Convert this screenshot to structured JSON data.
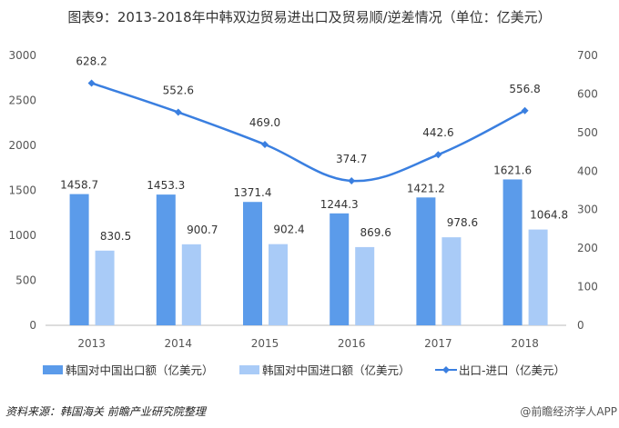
{
  "chart_data": {
    "type": "bar+line",
    "title": "图表9：2013-2018年中韩双边贸易进出口及贸易顺/逆差情况（单位：亿美元）",
    "categories": [
      "2013",
      "2014",
      "2015",
      "2016",
      "2017",
      "2018"
    ],
    "series": [
      {
        "name": "韩国对中国出口额（亿美元）",
        "type": "bar",
        "axis": "left",
        "color": "#5b9bea",
        "values": [
          1458.7,
          1453.3,
          1371.4,
          1244.3,
          1421.2,
          1621.6
        ]
      },
      {
        "name": "韩国对中国进口额（亿美元）",
        "type": "bar",
        "axis": "left",
        "color": "#a9cbf7",
        "values": [
          830.5,
          900.7,
          902.4,
          869.6,
          978.6,
          1064.8
        ]
      },
      {
        "name": "出口-进口（亿美元）",
        "type": "line",
        "axis": "right",
        "color": "#3a7fe0",
        "values": [
          628.2,
          552.6,
          469.0,
          374.7,
          442.6,
          556.8
        ]
      }
    ],
    "left_axis": {
      "ylim": [
        0,
        3000
      ],
      "ticks": [
        "0",
        "500",
        "1000",
        "1500",
        "2000",
        "2500",
        "3000"
      ]
    },
    "right_axis": {
      "ylim": [
        0,
        700
      ],
      "ticks": [
        "0",
        "100",
        "200",
        "300",
        "400",
        "500",
        "600",
        "700"
      ]
    },
    "grid": false,
    "legend": "bottom"
  },
  "footer": {
    "source": "资料来源：韩国海关 前瞻产业研究院整理",
    "credit": "@前瞻经济学人APP"
  }
}
